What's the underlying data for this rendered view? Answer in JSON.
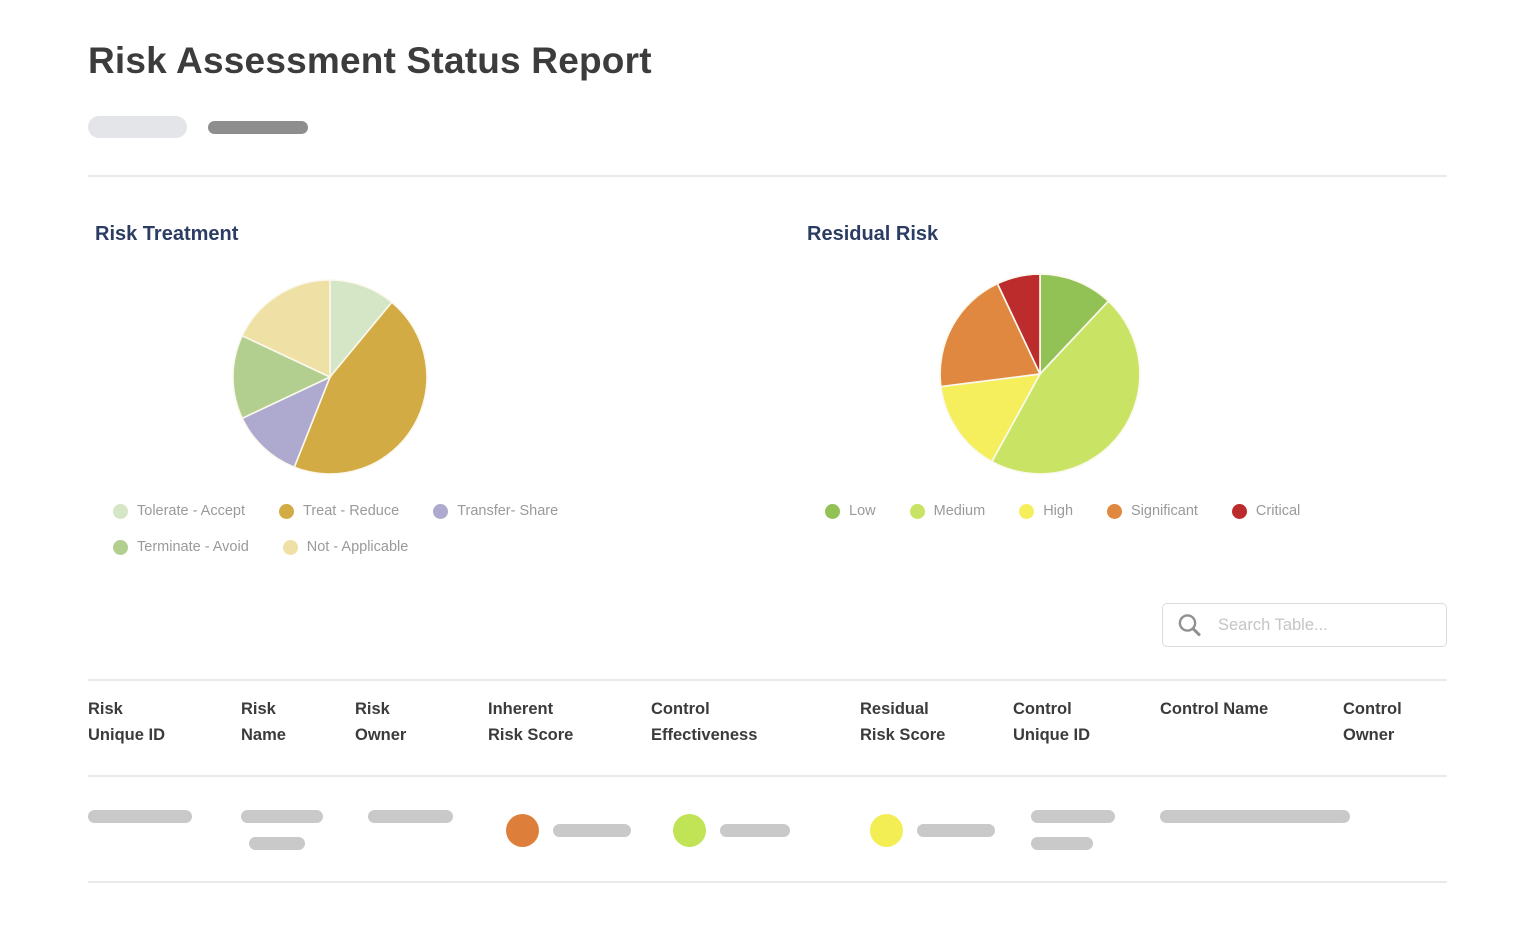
{
  "page": {
    "title": "Risk Assessment Status Report"
  },
  "chart_data": [
    {
      "type": "pie",
      "title": "Risk Treatment",
      "labels": [
        "Tolerate - Accept",
        "Treat - Reduce",
        "Transfer- Share",
        "Terminate - Avoid",
        "Not - Applicable"
      ],
      "values": [
        11,
        45,
        12,
        14,
        18
      ],
      "colors": [
        "#d5e6c7",
        "#d2ab44",
        "#aeaacf",
        "#b3cf90",
        "#efe1a5"
      ],
      "start_angle_deg": 0,
      "direction": "clockwise",
      "legend_position": "bottom"
    },
    {
      "type": "pie",
      "title": "Residual Risk",
      "labels": [
        "Low",
        "Medium",
        "High",
        "Significant",
        "Critical"
      ],
      "values": [
        12,
        46,
        15,
        20,
        7
      ],
      "colors": [
        "#92c155",
        "#c9e464",
        "#f5ef5e",
        "#e0883f",
        "#bc2c2c"
      ],
      "start_angle_deg": 0,
      "direction": "clockwise",
      "legend_position": "bottom"
    }
  ],
  "search": {
    "placeholder": "Search Table..."
  },
  "table": {
    "columns": [
      {
        "l1": "Risk",
        "l2": "Unique ID"
      },
      {
        "l1": "Risk",
        "l2": "Name"
      },
      {
        "l1": "Risk",
        "l2": "Owner"
      },
      {
        "l1": "Inherent",
        "l2": "Risk Score"
      },
      {
        "l1": "Control",
        "l2": "Effectiveness"
      },
      {
        "l1": "Residual",
        "l2": "Risk Score"
      },
      {
        "l1": "Control",
        "l2": "Unique ID"
      },
      {
        "l1": "Control Name",
        "l2": ""
      },
      {
        "l1": "Control",
        "l2": "Owner"
      }
    ]
  },
  "skeleton_row": {
    "bar_color": "#c9c9c9",
    "inherent_risk_score_color": "#dd7f3b",
    "control_effectiveness_color": "#c0e456",
    "residual_risk_score_color": "#f4ee55"
  },
  "colors": {
    "pill_light": "#e3e5e9",
    "pill_dark": "#8e8e8e",
    "chart_title": "#2c3d64",
    "divider": "#e9e9e9"
  }
}
